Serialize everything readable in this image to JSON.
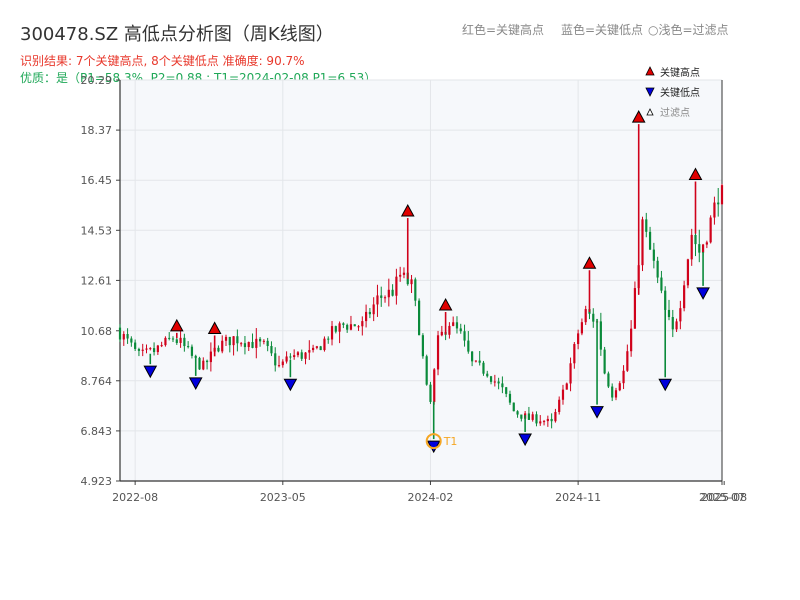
{
  "page": {
    "title": "300478.SZ 高低点分析图（周K线图）",
    "result_line": "识别结果: 7个关键高点, 8个关键低点  准确度: 90.7%",
    "quality_line": "优质：是（P1=58.3%, P2=0.88 ; T1=2024-02-08 P1=6.53）",
    "header_legend": [
      {
        "text": "红色=关键高点"
      },
      {
        "text": "蓝色=关键低点"
      },
      {
        "text": "○浅色=过滤点"
      }
    ]
  },
  "colors": {
    "up": "#d0021b",
    "down": "#0a8a3a",
    "high_marker": "#e00000",
    "low_marker": "#0000dd",
    "t1_ring": "#f5a623",
    "plot_bg": "#f6f8fb",
    "grid": "#e3e6ea"
  },
  "chart_data": {
    "type": "candlestick",
    "title": "300478.SZ 高低点分析图（周K线图）",
    "x_range": [
      "2022-07-08",
      "2025-07-25"
    ],
    "ylim": [
      4.923,
      20.29
    ],
    "y_ticks": [
      4.923,
      6.843,
      8.764,
      10.68,
      12.61,
      14.53,
      16.45,
      18.37,
      20.29
    ],
    "x_ticks": [
      "2022-08",
      "2023-05",
      "2024-02",
      "2024-11",
      "2025-07",
      "2025-08"
    ],
    "grid": true,
    "legend": {
      "placement": "top-right",
      "items": [
        {
          "label": "关键高点",
          "marker": "high"
        },
        {
          "label": "关键低点",
          "marker": "low"
        },
        {
          "label": "过滤点",
          "marker": "filtered"
        }
      ]
    },
    "anchors": [
      [
        "2022-07-08",
        10.8
      ],
      [
        "2022-08-19",
        9.7
      ],
      [
        "2022-09-16",
        9.9
      ],
      [
        "2022-10-21",
        10.4
      ],
      [
        "2022-11-04",
        10.2
      ],
      [
        "2022-12-02",
        9.5
      ],
      [
        "2022-12-16",
        9.3
      ],
      [
        "2023-01-13",
        10.1
      ],
      [
        "2023-02-10",
        10.4
      ],
      [
        "2023-04-07",
        10.1
      ],
      [
        "2023-05-05",
        9.3
      ],
      [
        "2023-05-26",
        9.7
      ],
      [
        "2023-07-07",
        9.8
      ],
      [
        "2023-08-04",
        10.5
      ],
      [
        "2023-09-01",
        10.9
      ],
      [
        "2023-10-06",
        10.9
      ],
      [
        "2023-11-03",
        11.9
      ],
      [
        "2023-12-01",
        12.2
      ],
      [
        "2023-12-15",
        12.8
      ],
      [
        "2024-01-05",
        12.4
      ],
      [
        "2024-01-19",
        10.8
      ],
      [
        "2024-02-02",
        8.4
      ],
      [
        "2024-02-09",
        7.9
      ],
      [
        "2024-02-23",
        10.3
      ],
      [
        "2024-03-15",
        11.0
      ],
      [
        "2024-04-05",
        10.5
      ],
      [
        "2024-04-26",
        9.4
      ],
      [
        "2024-05-24",
        9.1
      ],
      [
        "2024-06-21",
        8.4
      ],
      [
        "2024-07-12",
        7.6
      ],
      [
        "2024-08-09",
        7.3
      ],
      [
        "2024-08-30",
        7.3
      ],
      [
        "2024-09-20",
        7.1
      ],
      [
        "2024-10-11",
        8.3
      ],
      [
        "2024-10-25",
        9.4
      ],
      [
        "2024-11-08",
        10.6
      ],
      [
        "2024-11-22",
        11.4
      ],
      [
        "2024-12-13",
        11.0
      ],
      [
        "2024-12-27",
        9.1
      ],
      [
        "2025-01-10",
        8.3
      ],
      [
        "2025-01-31",
        9.1
      ],
      [
        "2025-02-14",
        10.7
      ],
      [
        "2025-03-07",
        14.8
      ],
      [
        "2025-03-28",
        13.2
      ],
      [
        "2025-04-18",
        11.4
      ],
      [
        "2025-05-02",
        10.6
      ],
      [
        "2025-05-16",
        11.8
      ],
      [
        "2025-06-06",
        14.4
      ],
      [
        "2025-06-20",
        13.7
      ],
      [
        "2025-07-04",
        14.4
      ],
      [
        "2025-07-25",
        15.9
      ]
    ],
    "key_highs": [
      {
        "date": "2022-10-21",
        "price": 10.6
      },
      {
        "date": "2022-12-30",
        "price": 10.5
      },
      {
        "date": "2023-12-22",
        "price": 15.0
      },
      {
        "date": "2024-03-01",
        "price": 11.4
      },
      {
        "date": "2024-11-22",
        "price": 13.0
      },
      {
        "date": "2025-02-21",
        "price": 18.6
      },
      {
        "date": "2025-06-06",
        "price": 16.4
      }
    ],
    "key_lows": [
      {
        "date": "2022-09-02",
        "price": 9.4
      },
      {
        "date": "2022-11-25",
        "price": 8.95
      },
      {
        "date": "2023-05-19",
        "price": 8.9
      },
      {
        "date": "2024-02-08",
        "price": 6.53
      },
      {
        "date": "2024-07-26",
        "price": 6.8
      },
      {
        "date": "2024-12-06",
        "price": 7.85
      },
      {
        "date": "2025-04-11",
        "price": 8.9
      },
      {
        "date": "2025-06-20",
        "price": 12.4
      }
    ],
    "annotations": [
      {
        "label": "T1",
        "date": "2024-02-08",
        "price": 6.53
      }
    ]
  }
}
